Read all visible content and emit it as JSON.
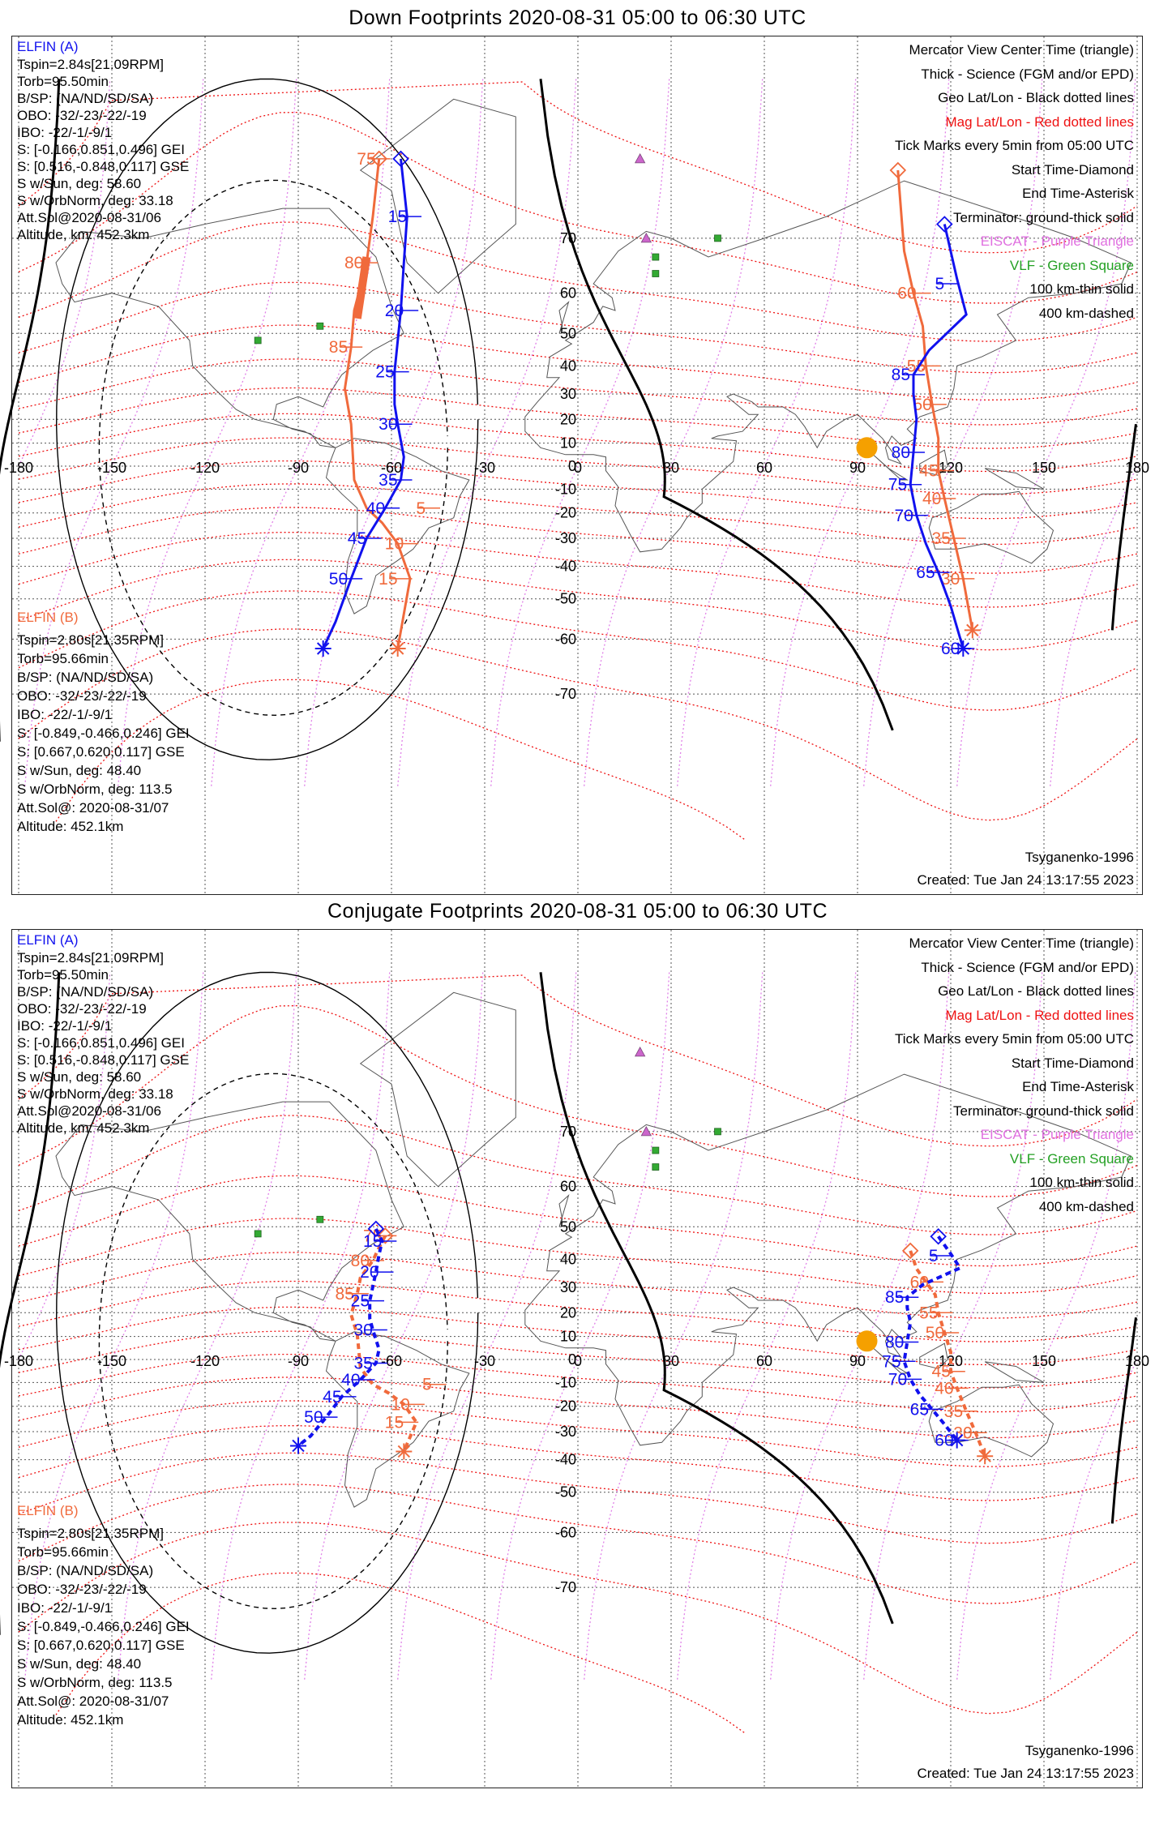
{
  "panels": [
    {
      "title": "Down Footprints 2020-08-31 05:00 to 06:30 UTC",
      "elfin_a": {
        "name": "ELFIN (A)",
        "lines": [
          "Tspin=2.84s[21.09RPM]",
          "Torb=95.50min",
          "B/SP: (NA/ND/SD/SA)",
          "OBO: -32/-23/-22/-19",
          "IBO: -22/-1/-9/1",
          "S: [-0.166,0.851,0.496] GEI",
          "S: [0.516,-0.848,0.117] GSE",
          "S w/Sun, deg: 58.60",
          "S w/OrbNorm, deg: 33.18",
          "Att.Sol@2020-08-31/06",
          "Altitude, km: 452.3km"
        ]
      },
      "elfin_b": {
        "name": "ELFIN (B)",
        "lines": [
          "Tspin=2.80s[21.35RPM]",
          "Torb=95.66min",
          "B/SP: (NA/ND/SD/SA)",
          "OBO: -32/-23/-22/-19",
          "IBO: -22/-1/-9/1",
          "S: [-0.849,-0.466,0.246] GEI",
          "S: [0.667,0.620,0.117] GSE",
          "S w/Sun, deg: 48.40",
          "S w/OrbNorm, deg: 113.5",
          "Att.Sol@: 2020-08-31/07",
          "Altitude: 452.1km"
        ]
      },
      "footer_model": "Tsyganenko-1996",
      "footer_created": "Created: Tue Jan 24 13:17:55 2023"
    },
    {
      "title": "Conjugate Footprints 2020-08-31 05:00 to 06:30 UTC",
      "elfin_a": {
        "name": "ELFIN (A)",
        "lines": [
          "Tspin=2.84s[21.09RPM]",
          "Torb=95.50min",
          "B/SP: (NA/ND/SD/SA)",
          "OBO: -32/-23/-22/-19",
          "IBO: -22/-1/-9/1",
          "S: [-0.166,0.851,0.496] GEI",
          "S: [0.516,-0.848,0.117] GSE",
          "S w/Sun, deg: 58.60",
          "S w/OrbNorm, deg: 33.18",
          "Att.Sol@2020-08-31/06",
          "Altitude, km: 452.3km"
        ]
      },
      "elfin_b": {
        "name": "ELFIN (B)",
        "lines": [
          "Tspin=2.80s[21.35RPM]",
          "Torb=95.66min",
          "B/SP: (NA/ND/SD/SA)",
          "OBO: -32/-23/-22/-19",
          "IBO: -22/-1/-9/1",
          "S: [-0.849,-0.466,0.246] GEI",
          "S: [0.667,0.620,0.117] GSE",
          "S w/Sun, deg: 48.40",
          "S w/OrbNorm, deg: 113.5",
          "Att.Sol@: 2020-08-31/07",
          "Altitude: 452.1km"
        ]
      },
      "footer_model": "Tsyganenko-1996",
      "footer_created": "Created: Tue Jan 24 13:17:55 2023"
    }
  ],
  "legend": [
    {
      "text": "Mercator View Center Time (triangle)",
      "color": "#000000"
    },
    {
      "text": "Thick - Science (FGM and/or EPD)",
      "color": "#000000"
    },
    {
      "text": "Geo Lat/Lon - Black dotted lines",
      "color": "#000000"
    },
    {
      "text": "Mag Lat/Lon - Red dotted lines",
      "color": "#ee1111"
    },
    {
      "text": "Tick Marks every 5min from 05:00 UTC",
      "color": "#000000"
    },
    {
      "text": "Start Time-Diamond",
      "color": "#000000"
    },
    {
      "text": "End Time-Asterisk",
      "color": "#000000"
    },
    {
      "text": "Terminator: ground-thick solid",
      "color": "#000000"
    },
    {
      "text": "EISCAT - Purple Triangle",
      "color": "#e070e0"
    },
    {
      "text": "VLF - Green Square",
      "color": "#23a023"
    },
    {
      "text": "100 km-thin solid",
      "color": "#000000"
    },
    {
      "text": "400 km-dashed",
      "color": "#000000"
    }
  ],
  "lon_ticks": [
    "-180",
    "-150",
    "-120",
    "-90",
    "-60",
    "-30",
    "0",
    "30",
    "60",
    "90",
    "120",
    "150",
    "180"
  ],
  "lat_ticks": [
    "70",
    "60",
    "50",
    "40",
    "30",
    "20",
    "10",
    "0",
    "-10",
    "-20",
    "-30",
    "-40",
    "-50",
    "-60",
    "-70"
  ],
  "colors": {
    "elfin_a": "#1111ee",
    "elfin_b": "#f06a3c",
    "mag_grid": "#ee1111",
    "geo_grid": "#555555",
    "eiscat": "#cc66cc",
    "vlf": "#33aa33",
    "sun": "#f5a000"
  },
  "map_projection": "mercator",
  "tracks_down": {
    "elfin_a": {
      "north": {
        "points": [
          [
            -57,
            79
          ],
          [
            -55,
            73
          ],
          [
            -56,
            66
          ],
          [
            -57,
            56
          ],
          [
            -59,
            38
          ],
          [
            -59,
            26
          ],
          [
            -58,
            18
          ],
          [
            -56,
            4
          ],
          [
            -57,
            -6
          ],
          [
            -62,
            -18
          ],
          [
            -68,
            -30
          ],
          [
            -73,
            -44
          ],
          [
            -78,
            -56
          ],
          [
            -82,
            -62
          ]
        ],
        "labels": [
          {
            "t": "15",
            "lat": 73,
            "lon": -54
          },
          {
            "t": "20",
            "lat": 56,
            "lon": -55
          },
          {
            "t": "25",
            "lat": 38,
            "lon": -58
          },
          {
            "t": "30",
            "lat": 18,
            "lon": -57
          },
          {
            "t": "35",
            "lat": -6,
            "lon": -57
          },
          {
            "t": "40",
            "lat": -18,
            "lon": -61
          },
          {
            "t": "45",
            "lat": -30,
            "lon": -67
          },
          {
            "t": "50",
            "lat": -44,
            "lon": -73
          }
        ]
      },
      "east": {
        "points": [
          [
            118,
            72
          ],
          [
            122,
            63
          ],
          [
            125,
            55
          ],
          [
            113,
            45
          ],
          [
            108,
            37
          ],
          [
            108,
            30
          ],
          [
            109,
            20
          ],
          [
            108,
            6
          ],
          [
            107,
            -8
          ],
          [
            109,
            -21
          ],
          [
            112,
            -32
          ],
          [
            116,
            -42
          ],
          [
            120,
            -52
          ],
          [
            124,
            -62
          ]
        ],
        "labels": [
          {
            "t": "5",
            "lat": 62,
            "lon": 119
          },
          {
            "t": "85",
            "lat": 37,
            "lon": 108
          },
          {
            "t": "80",
            "lat": 6,
            "lon": 108
          },
          {
            "t": "75",
            "lat": -8,
            "lon": 107
          },
          {
            "t": "70",
            "lat": -21,
            "lon": 109
          },
          {
            "t": "65",
            "lat": -42,
            "lon": 116
          },
          {
            "t": "60",
            "lat": -62,
            "lon": 124
          }
        ]
      }
    },
    "elfin_b": {
      "north": {
        "points": [
          [
            -64,
            79
          ],
          [
            -66,
            73
          ],
          [
            -68,
            66
          ],
          [
            -72,
            56
          ],
          [
            -73,
            46
          ],
          [
            -75,
            32
          ],
          [
            -73,
            18
          ],
          [
            -72,
            -6
          ],
          [
            -68,
            -18
          ],
          [
            -63,
            -24
          ],
          [
            -58,
            -32
          ],
          [
            -54,
            -44
          ],
          [
            -58,
            -62
          ]
        ],
        "labels": [
          {
            "t": "75",
            "lat": 79,
            "lon": -64
          },
          {
            "t": "80",
            "lat": 66,
            "lon": -68
          },
          {
            "t": "85",
            "lat": 46,
            "lon": -73
          },
          {
            "t": "5",
            "lat": -18,
            "lon": -48
          },
          {
            "t": "10",
            "lat": -32,
            "lon": -55
          },
          {
            "t": "15",
            "lat": -44,
            "lon": -57
          }
        ]
      },
      "east": {
        "points": [
          [
            103,
            78
          ],
          [
            105,
            68
          ],
          [
            108,
            60
          ],
          [
            111,
            52
          ],
          [
            112,
            40
          ],
          [
            114,
            26
          ],
          [
            116,
            12
          ],
          [
            116,
            -2
          ],
          [
            118,
            -14
          ],
          [
            121,
            -30
          ],
          [
            124,
            -44
          ],
          [
            127,
            -58
          ]
        ],
        "labels": [
          {
            "t": "60",
            "lat": 60,
            "lon": 110
          },
          {
            "t": "55",
            "lat": 40,
            "lon": 113
          },
          {
            "t": "50",
            "lat": 26,
            "lon": 115
          },
          {
            "t": "45",
            "lat": -2,
            "lon": 117
          },
          {
            "t": "40",
            "lat": -14,
            "lon": 118
          },
          {
            "t": "35",
            "lat": -30,
            "lon": 121
          },
          {
            "t": "30",
            "lat": -44,
            "lon": 124
          }
        ]
      }
    }
  }
}
